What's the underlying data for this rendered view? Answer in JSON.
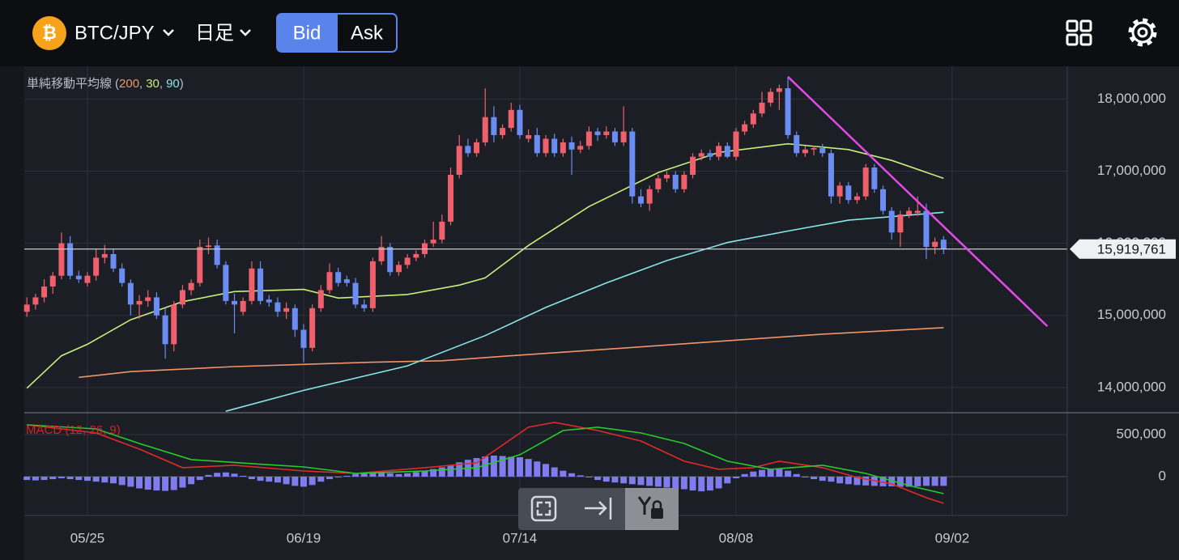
{
  "header": {
    "icon": "₿",
    "pair": "BTC/JPY",
    "timeframe": "日足",
    "bid": "Bid",
    "ask": "Ask"
  },
  "chart_data": [
    {
      "type": "candlestick",
      "indicator_label": "単純移動平均線",
      "indicator_open": "(",
      "indicator_sep": ",",
      "indicator_close": ")",
      "xlim": [
        -0.3,
        120.3
      ],
      "xticks": [
        {
          "value": 7,
          "label": "05/25"
        },
        {
          "value": 32,
          "label": "06/19"
        },
        {
          "value": 57,
          "label": "07/14"
        },
        {
          "value": 82,
          "label": "08/08"
        },
        {
          "value": 107,
          "label": "09/02"
        }
      ],
      "ylim": [
        13650000,
        18420000
      ],
      "yticks": [
        {
          "value": 14000000,
          "label": "14,000,000"
        },
        {
          "value": 15000000,
          "label": "15,000,000"
        },
        {
          "value": 16000000,
          "label": "16,000,000"
        },
        {
          "value": 17000000,
          "label": "17,000,000"
        },
        {
          "value": 18000000,
          "label": "18,000,000"
        }
      ],
      "grid": true,
      "up_color": "#ef5f6c",
      "down_color": "#6b8cf2",
      "ohlc": [
        [
          15050000,
          15250000,
          14980000,
          15150000
        ],
        [
          15150000,
          15300000,
          15080000,
          15250000
        ],
        [
          15250000,
          15500000,
          15180000,
          15400000
        ],
        [
          15400000,
          15600000,
          15300000,
          15550000
        ],
        [
          15550000,
          16150000,
          15500000,
          16000000
        ],
        [
          16000000,
          16100000,
          15500000,
          15550000
        ],
        [
          15550000,
          15620000,
          15450000,
          15500000
        ],
        [
          15450000,
          15600000,
          15400000,
          15550000
        ],
        [
          15550000,
          15920000,
          15480000,
          15800000
        ],
        [
          15800000,
          15980000,
          15720000,
          15850000
        ],
        [
          15850000,
          15920000,
          15600000,
          15650000
        ],
        [
          15650000,
          15720000,
          15400000,
          15450000
        ],
        [
          15450000,
          15500000,
          15000000,
          15150000
        ],
        [
          15150000,
          15280000,
          14950000,
          15200000
        ],
        [
          15200000,
          15350000,
          15120000,
          15250000
        ],
        [
          15250000,
          15320000,
          14950000,
          15000000
        ],
        [
          15000000,
          15100000,
          14400000,
          14600000
        ],
        [
          14600000,
          15200000,
          14500000,
          15150000
        ],
        [
          15150000,
          15420000,
          15100000,
          15350000
        ],
        [
          15350000,
          15500000,
          15280000,
          15450000
        ],
        [
          15450000,
          16050000,
          15400000,
          15950000
        ],
        [
          15950000,
          16080000,
          15850000,
          15970000
        ],
        [
          15970000,
          16050000,
          15650000,
          15700000
        ],
        [
          15700000,
          15750000,
          15150000,
          15200000
        ],
        [
          15200000,
          15300000,
          14750000,
          15150000
        ],
        [
          15050000,
          15250000,
          15000000,
          15200000
        ],
        [
          15200000,
          15750000,
          15150000,
          15650000
        ],
        [
          15650000,
          15750000,
          15150000,
          15200000
        ],
        [
          15220000,
          15280000,
          15120000,
          15180000
        ],
        [
          15180000,
          15250000,
          14980000,
          15050000
        ],
        [
          15050000,
          15180000,
          14950000,
          15100000
        ],
        [
          15100000,
          15150000,
          14700000,
          14800000
        ],
        [
          14800000,
          14880000,
          14350000,
          14550000
        ],
        [
          14550000,
          15150000,
          14500000,
          15100000
        ],
        [
          15100000,
          15420000,
          15050000,
          15350000
        ],
        [
          15350000,
          15720000,
          15300000,
          15600000
        ],
        [
          15600000,
          15660000,
          15400000,
          15450000
        ],
        [
          15500000,
          15550000,
          15400000,
          15450000
        ],
        [
          15450000,
          15520000,
          15100000,
          15150000
        ],
        [
          15150000,
          15220000,
          15050000,
          15100000
        ],
        [
          15100000,
          15800000,
          15050000,
          15750000
        ],
        [
          15750000,
          16100000,
          15700000,
          15950000
        ],
        [
          15950000,
          16000000,
          15550000,
          15600000
        ],
        [
          15600000,
          15750000,
          15550000,
          15700000
        ],
        [
          15700000,
          15850000,
          15650000,
          15800000
        ],
        [
          15800000,
          15900000,
          15750000,
          15850000
        ],
        [
          15850000,
          16050000,
          15800000,
          16000000
        ],
        [
          16000000,
          16300000,
          15950000,
          16050000
        ],
        [
          16050000,
          16400000,
          16000000,
          16300000
        ],
        [
          16300000,
          17050000,
          16250000,
          16950000
        ],
        [
          16950000,
          17500000,
          16900000,
          17350000
        ],
        [
          17350000,
          17450000,
          17200000,
          17250000
        ],
        [
          17250000,
          17450000,
          17200000,
          17400000
        ],
        [
          17400000,
          18150000,
          17350000,
          17750000
        ],
        [
          17750000,
          17900000,
          17400000,
          17500000
        ],
        [
          17500000,
          17650000,
          17450000,
          17600000
        ],
        [
          17600000,
          17950000,
          17550000,
          17850000
        ],
        [
          17850000,
          17920000,
          17450000,
          17500000
        ],
        [
          17450000,
          17580000,
          17400000,
          17500000
        ],
        [
          17500000,
          17600000,
          17200000,
          17250000
        ],
        [
          17250000,
          17500000,
          17200000,
          17450000
        ],
        [
          17450000,
          17520000,
          17200000,
          17250000
        ],
        [
          17250000,
          17450000,
          17200000,
          17400000
        ],
        [
          17400000,
          17480000,
          16950000,
          17300000
        ],
        [
          17300000,
          17420000,
          17250000,
          17350000
        ],
        [
          17350000,
          17620000,
          17300000,
          17550000
        ],
        [
          17550000,
          17600000,
          17420000,
          17500000
        ],
        [
          17500000,
          17620000,
          17450000,
          17550000
        ],
        [
          17550000,
          17600000,
          17350000,
          17400000
        ],
        [
          17400000,
          17900000,
          17350000,
          17550000
        ],
        [
          17550000,
          17600000,
          16550000,
          16650000
        ],
        [
          16650000,
          16750000,
          16500000,
          16550000
        ],
        [
          16550000,
          16800000,
          16450000,
          16750000
        ],
        [
          16750000,
          16950000,
          16700000,
          16900000
        ],
        [
          16900000,
          17000000,
          16850000,
          16950000
        ],
        [
          16950000,
          17000000,
          16700000,
          16750000
        ],
        [
          16750000,
          17000000,
          16700000,
          16950000
        ],
        [
          16950000,
          17250000,
          16900000,
          17200000
        ],
        [
          17200000,
          17300000,
          17150000,
          17250000
        ],
        [
          17250000,
          17300000,
          17150000,
          17200000
        ],
        [
          17200000,
          17400000,
          17150000,
          17350000
        ],
        [
          17350000,
          17400000,
          17180000,
          17200000
        ],
        [
          17200000,
          17600000,
          17150000,
          17550000
        ],
        [
          17550000,
          17700000,
          17500000,
          17650000
        ],
        [
          17650000,
          17850000,
          17600000,
          17800000
        ],
        [
          17800000,
          18100000,
          17750000,
          17950000
        ],
        [
          17950000,
          18150000,
          17900000,
          18100000
        ],
        [
          18100000,
          18200000,
          17850000,
          18150000
        ],
        [
          18150000,
          18300000,
          17450000,
          17500000
        ],
        [
          17500000,
          17550000,
          17200000,
          17250000
        ],
        [
          17250000,
          17350000,
          17200000,
          17300000
        ],
        [
          17300000,
          17350000,
          17220000,
          17320000
        ],
        [
          17320000,
          17380000,
          17200000,
          17250000
        ],
        [
          17250000,
          17300000,
          16550000,
          16650000
        ],
        [
          16650000,
          16850000,
          16550000,
          16800000
        ],
        [
          16800000,
          16850000,
          16550000,
          16600000
        ],
        [
          16600000,
          16700000,
          16550000,
          16650000
        ],
        [
          16650000,
          17100000,
          16600000,
          17050000
        ],
        [
          17050000,
          17100000,
          16700000,
          16750000
        ],
        [
          16750000,
          16800000,
          16400000,
          16450000
        ],
        [
          16450000,
          16500000,
          16050000,
          16150000
        ],
        [
          16150000,
          16450000,
          15950000,
          16400000
        ],
        [
          16400000,
          16500000,
          16350000,
          16450000
        ],
        [
          16420000,
          16650000,
          16380000,
          16450000
        ],
        [
          16450000,
          16550000,
          15780000,
          15950000
        ],
        [
          15950000,
          16080000,
          15850000,
          16020000
        ],
        [
          16050000,
          16100000,
          15850000,
          15920000
        ]
      ],
      "series": [
        {
          "name": "200",
          "color": "#f0956a",
          "x": [
            6,
            12,
            24,
            40,
            48,
            56,
            67,
            80,
            92,
            106
          ],
          "values": [
            14140000,
            14220000,
            14290000,
            14350000,
            14370000,
            14440000,
            14530000,
            14640000,
            14740000,
            14830000
          ]
        },
        {
          "name": "30",
          "color": "#c6ef7c",
          "x": [
            0,
            4,
            7,
            12,
            18,
            24,
            32,
            36,
            44,
            50,
            53,
            58,
            65,
            73,
            80,
            88,
            95,
            100,
            106
          ],
          "values": [
            13990000,
            14440000,
            14600000,
            14940000,
            15190000,
            15330000,
            15360000,
            15240000,
            15290000,
            15420000,
            15520000,
            15970000,
            16510000,
            16980000,
            17260000,
            17380000,
            17300000,
            17150000,
            16900000
          ]
        },
        {
          "name": "90",
          "color": "#86e6e8",
          "x": [
            23,
            32,
            44,
            53,
            60,
            67,
            74,
            81,
            88,
            95,
            100,
            106
          ],
          "values": [
            13670000,
            13960000,
            14300000,
            14720000,
            15110000,
            15450000,
            15760000,
            16010000,
            16170000,
            16320000,
            16370000,
            16430000
          ]
        }
      ],
      "last_price": {
        "value": 15919761,
        "label": "15,919,761"
      },
      "trendline": {
        "color": "#e24ae8",
        "x": [
          88,
          118
        ],
        "values": [
          18310000,
          14850000
        ]
      }
    },
    {
      "type": "macd",
      "title": "MACD (12, 26, 9)",
      "title_color": "#d62222",
      "ylim": [
        -462000,
        740000
      ],
      "yticks": [
        0,
        {
          "value": 500000,
          "label": "500,000"
        }
      ],
      "histogram": {
        "color": "#7f7cf0",
        "values": [
          -40000,
          -45000,
          -40000,
          -30000,
          -20000,
          -30000,
          -40000,
          -50000,
          -60000,
          -70000,
          -80000,
          -100000,
          -120000,
          -140000,
          -155000,
          -165000,
          -170000,
          -160000,
          -130000,
          -90000,
          -40000,
          20000,
          45000,
          50000,
          35000,
          10000,
          -30000,
          -50000,
          -60000,
          -70000,
          -90000,
          -110000,
          -120000,
          -100000,
          -60000,
          -30000,
          -10000,
          10000,
          30000,
          40000,
          45000,
          45000,
          40000,
          30000,
          40000,
          55000,
          70000,
          90000,
          110000,
          140000,
          170000,
          200000,
          220000,
          240000,
          250000,
          245000,
          235000,
          230000,
          210000,
          180000,
          150000,
          110000,
          70000,
          40000,
          15000,
          -10000,
          -40000,
          -60000,
          -70000,
          -80000,
          -90000,
          -100000,
          -110000,
          -120000,
          -130000,
          -140000,
          -150000,
          -165000,
          -175000,
          -165000,
          -140000,
          -80000,
          -20000,
          30000,
          60000,
          80000,
          90000,
          95000,
          70000,
          30000,
          -10000,
          -30000,
          -50000,
          -60000,
          -80000,
          -90000,
          -100000,
          -105000,
          -110000,
          -115000,
          -115000,
          -120000,
          -120000,
          -115000,
          -110000,
          -110000,
          -110000
        ]
      },
      "series": [
        {
          "color": "#e02a2a",
          "x": [
            0,
            8,
            13,
            18,
            24,
            32,
            38,
            46,
            52,
            55,
            58,
            61,
            66,
            71,
            76,
            80,
            84,
            87,
            92,
            96,
            100,
            104,
            106
          ],
          "values": [
            615000,
            519000,
            327000,
            106000,
            135000,
            67000,
            38000,
            106000,
            163000,
            375000,
            587000,
            644000,
            548000,
            423000,
            183000,
            87000,
            106000,
            183000,
            106000,
            -10000,
            -87000,
            -250000,
            -317000
          ]
        },
        {
          "color": "#25cc2c",
          "x": [
            0,
            8,
            13,
            19,
            26,
            32,
            38,
            46,
            52,
            57,
            62,
            66,
            71,
            76,
            81,
            86,
            92,
            97,
            102,
            106
          ],
          "values": [
            615000,
            567000,
            394000,
            202000,
            154000,
            115000,
            38000,
            67000,
            106000,
            260000,
            548000,
            587000,
            519000,
            394000,
            183000,
            87000,
            135000,
            38000,
            -106000,
            -202000
          ]
        }
      ]
    }
  ]
}
